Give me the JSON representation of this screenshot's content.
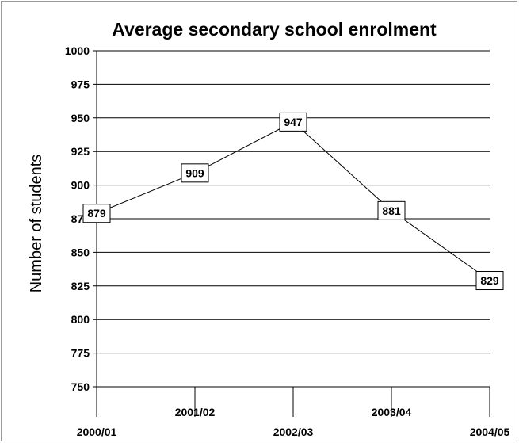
{
  "chart_data": {
    "type": "line",
    "title": "Average secondary school enrolment",
    "xlabel": "",
    "ylabel": "Number of students",
    "categories": [
      "2000/01",
      "2001/02",
      "2002/03",
      "2003/04",
      "2004/05"
    ],
    "series": [
      {
        "values": [
          879,
          909,
          947,
          881,
          829
        ],
        "data_labels": [
          "879",
          "909",
          "947",
          "881",
          "829"
        ]
      }
    ],
    "ylim": [
      750,
      1000
    ],
    "yticks": [
      750,
      775,
      800,
      825,
      850,
      875,
      900,
      925,
      950,
      975,
      1000
    ],
    "ytick_labels": [
      "750",
      "775",
      "800",
      "825",
      "850",
      "875",
      "900",
      "925",
      "950",
      "975",
      "1000"
    ],
    "grid": true,
    "legend": "none",
    "colors": {
      "line": "#000000",
      "grid": "#000000",
      "label_box_fill": "#ffffff",
      "label_box_stroke": "#000000",
      "frame": "#9a9a9a"
    }
  }
}
